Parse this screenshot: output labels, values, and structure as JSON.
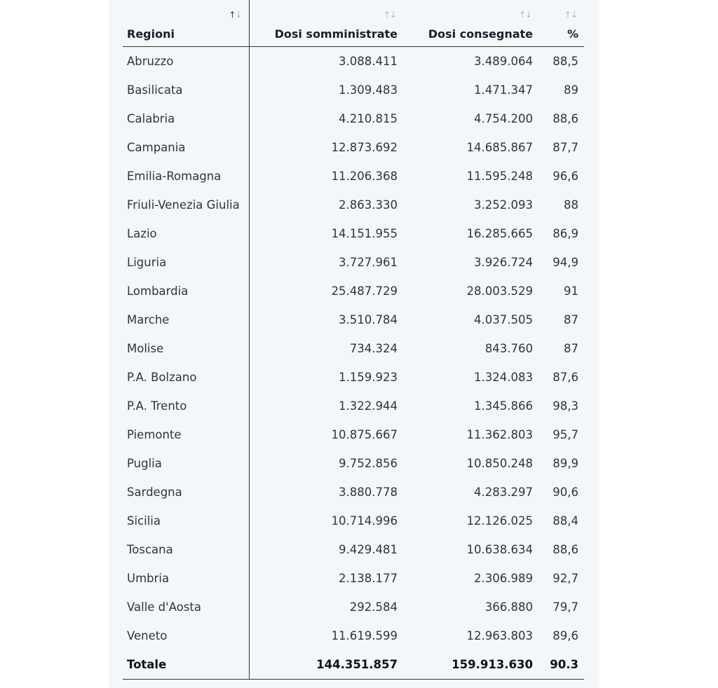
{
  "table": {
    "headers": {
      "region": "Regioni",
      "administered": "Dosi somministrate",
      "delivered": "Dosi consegnate",
      "percent": "%"
    },
    "sort_icon": {
      "up": "↑",
      "down": "↓"
    },
    "rows": [
      {
        "region": "Abruzzo",
        "administered": "3.088.411",
        "delivered": "3.489.064",
        "percent": "88,5"
      },
      {
        "region": "Basilicata",
        "administered": "1.309.483",
        "delivered": "1.471.347",
        "percent": "89"
      },
      {
        "region": "Calabria",
        "administered": "4.210.815",
        "delivered": "4.754.200",
        "percent": "88,6"
      },
      {
        "region": "Campania",
        "administered": "12.873.692",
        "delivered": "14.685.867",
        "percent": "87,7"
      },
      {
        "region": "Emilia-Romagna",
        "administered": "11.206.368",
        "delivered": "11.595.248",
        "percent": "96,6"
      },
      {
        "region": "Friuli-Venezia Giulia",
        "administered": "2.863.330",
        "delivered": "3.252.093",
        "percent": "88"
      },
      {
        "region": "Lazio",
        "administered": "14.151.955",
        "delivered": "16.285.665",
        "percent": "86,9"
      },
      {
        "region": "Liguria",
        "administered": "3.727.961",
        "delivered": "3.926.724",
        "percent": "94,9"
      },
      {
        "region": "Lombardia",
        "administered": "25.487.729",
        "delivered": "28.003.529",
        "percent": "91"
      },
      {
        "region": "Marche",
        "administered": "3.510.784",
        "delivered": "4.037.505",
        "percent": "87"
      },
      {
        "region": "Molise",
        "administered": "734.324",
        "delivered": "843.760",
        "percent": "87"
      },
      {
        "region": "P.A. Bolzano",
        "administered": "1.159.923",
        "delivered": "1.324.083",
        "percent": "87,6"
      },
      {
        "region": "P.A. Trento",
        "administered": "1.322.944",
        "delivered": "1.345.866",
        "percent": "98,3"
      },
      {
        "region": "Piemonte",
        "administered": "10.875.667",
        "delivered": "11.362.803",
        "percent": "95,7"
      },
      {
        "region": "Puglia",
        "administered": "9.752.856",
        "delivered": "10.850.248",
        "percent": "89,9"
      },
      {
        "region": "Sardegna",
        "administered": "3.880.778",
        "delivered": "4.283.297",
        "percent": "90,6"
      },
      {
        "region": "Sicilia",
        "administered": "10.714.996",
        "delivered": "12.126.025",
        "percent": "88,4"
      },
      {
        "region": "Toscana",
        "administered": "9.429.481",
        "delivered": "10.638.634",
        "percent": "88,6"
      },
      {
        "region": "Umbria",
        "administered": "2.138.177",
        "delivered": "2.306.989",
        "percent": "92,7"
      },
      {
        "region": "Valle d'Aosta",
        "administered": "292.584",
        "delivered": "366.880",
        "percent": "79,7"
      },
      {
        "region": "Veneto",
        "administered": "11.619.599",
        "delivered": "12.963.803",
        "percent": "89,6"
      }
    ],
    "total": {
      "region": "Totale",
      "administered": "144.351.857",
      "delivered": "159.913.630",
      "percent": "90.3"
    }
  }
}
